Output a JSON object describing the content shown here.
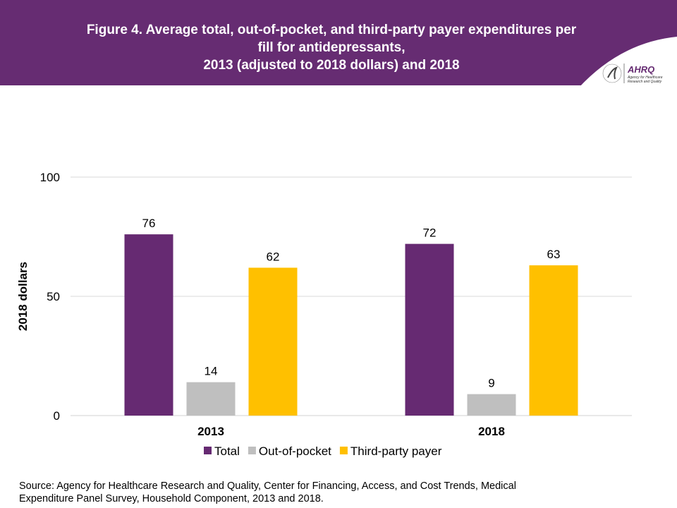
{
  "header": {
    "title_lines": [
      "Figure 4. Average total, out-of-pocket, and third-party payer expenditures per",
      "fill for antidepressants,",
      "2013 (adjusted to 2018 dollars) and 2018"
    ],
    "logo_text": "AHRQ Agency for Healthcare Research and Quality"
  },
  "chart_data": {
    "type": "bar",
    "title": "Figure 4. Average total, out-of-pocket, and third-party payer expenditures per fill for antidepressants, 2013 (adjusted to 2018 dollars) and 2018",
    "categories": [
      "2013",
      "2018"
    ],
    "series": [
      {
        "name": "Total",
        "values": [
          76,
          72
        ],
        "color": "#662a72"
      },
      {
        "name": "Out-of-pocket",
        "values": [
          14,
          9
        ],
        "color": "#bfbfbf"
      },
      {
        "name": "Third-party payer",
        "values": [
          62,
          63
        ],
        "color": "#ffc000"
      }
    ],
    "ylabel": "2018 dollars",
    "xlabel": "",
    "ylim": [
      0,
      100
    ],
    "yticks": [
      0,
      50,
      100
    ],
    "grid": true,
    "legend": "bottom"
  },
  "source": {
    "line1": "Source: Agency for Healthcare Research and Quality, Center for Financing, Access, and Cost Trends, Medical",
    "line2": "Expenditure Panel Survey, Household Component, 2013 and 2018."
  }
}
